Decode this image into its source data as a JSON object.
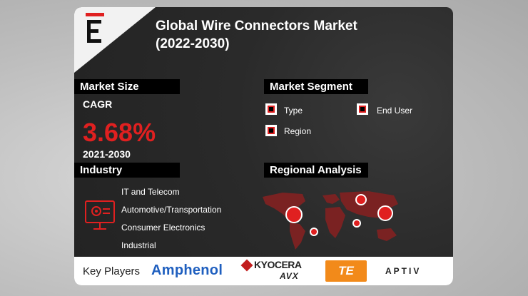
{
  "title_line1": "Global Wire Connectors Market",
  "title_line2": "(2022-2030)",
  "market_size": {
    "header": "Market Size",
    "cagr_label": "CAGR",
    "cagr_value": "3.68%",
    "period": "2021-2030"
  },
  "market_segment": {
    "header": "Market Segment",
    "items": [
      "Type",
      "End User",
      "Region"
    ]
  },
  "industry": {
    "header": "Industry",
    "items": [
      "IT and Telecom",
      "Automotive/Transportation",
      "Consumer Electronics",
      "Industrial"
    ]
  },
  "regional": {
    "header": "Regional Analysis"
  },
  "footer": {
    "label": "Key Players",
    "players": [
      "Amphenol",
      "KYOCERA",
      "AVX",
      "TE",
      "APTIV"
    ]
  },
  "colors": {
    "accent": "#e02020",
    "panel": "#2b2b2b",
    "header_bg": "#000000"
  },
  "icons": [
    "logo-e-icon",
    "checkbox-icon",
    "monitor-gear-icon",
    "world-map-icon"
  ]
}
